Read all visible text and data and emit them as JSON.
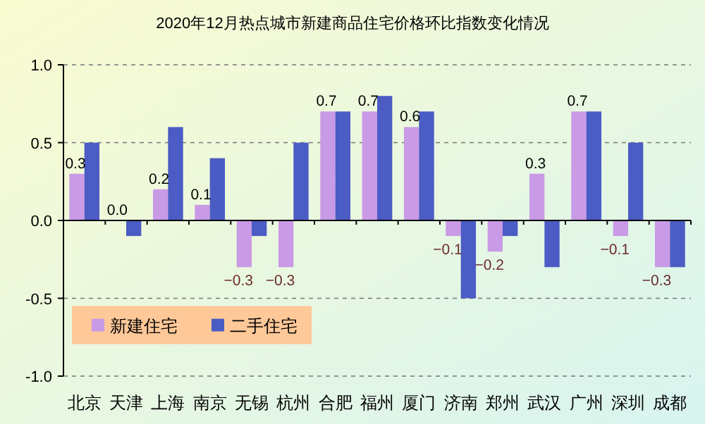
{
  "chart_data": {
    "type": "bar",
    "title": "2020年12月热点城市新建商品住宅价格环比指数变化情况",
    "categories": [
      "北京",
      "天津",
      "上海",
      "南京",
      "无锡",
      "杭州",
      "合肥",
      "福州",
      "厦门",
      "济南",
      "郑州",
      "武汉",
      "广州",
      "深圳",
      "成都"
    ],
    "series": [
      {
        "name": "新建住宅",
        "color": "#c99ae6",
        "values": [
          0.3,
          0.0,
          0.2,
          0.1,
          -0.3,
          -0.3,
          0.7,
          0.7,
          0.6,
          -0.1,
          -0.2,
          0.3,
          0.7,
          -0.1,
          -0.3
        ],
        "value_labels": [
          "0.3",
          "0.0",
          "0.2",
          "0.1",
          "−0.3",
          "−0.3",
          "0.7",
          "0.7",
          "0.6",
          "−0.1",
          "−0.2",
          "0.3",
          "0.7",
          "−0.1",
          "−0.3"
        ]
      },
      {
        "name": "二手住宅",
        "color": "#4b5cc4",
        "values": [
          0.5,
          -0.1,
          0.6,
          0.4,
          -0.1,
          0.5,
          0.7,
          0.8,
          0.7,
          -0.5,
          -0.1,
          -0.3,
          0.7,
          0.5,
          -0.3
        ]
      }
    ],
    "ylim": [
      -1.0,
      1.0
    ],
    "yticks": [
      {
        "value": -1.0,
        "label": "-1.0"
      },
      {
        "value": -0.5,
        "label": "-0.5"
      },
      {
        "value": 0,
        "label": "0.0"
      },
      {
        "value": 0.5,
        "label": "0.5"
      },
      {
        "value": 1.0,
        "label": "1.0"
      }
    ],
    "grid": "y",
    "legend": "bottom left"
  }
}
